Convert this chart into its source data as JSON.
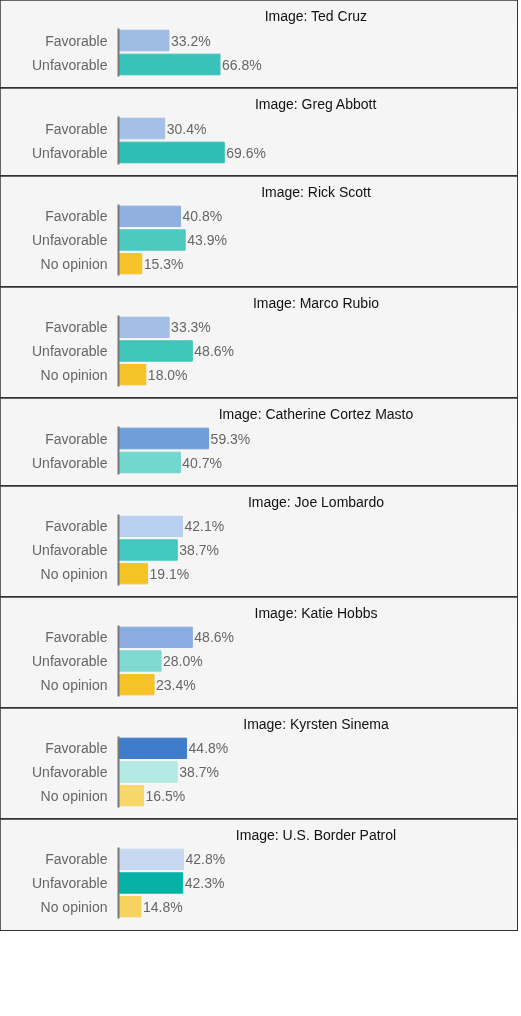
{
  "chart_data": [
    {
      "type": "bar",
      "orientation": "horizontal",
      "title": "Image: Ted Cruz",
      "categories": [
        "Favorable",
        "Unfavorable"
      ],
      "values": [
        33.2,
        66.8
      ],
      "colors": [
        "#9dbbe3",
        "#38c3b8"
      ],
      "value_labels": [
        "33.2%",
        "66.8%"
      ],
      "xlim": [
        0,
        260
      ],
      "tick_labels": "y"
    },
    {
      "type": "bar",
      "orientation": "horizontal",
      "title": "Image: Greg Abbott",
      "categories": [
        "Favorable",
        "Unfavorable"
      ],
      "values": [
        30.4,
        69.6
      ],
      "colors": [
        "#a4c0e6",
        "#2dbfb3"
      ],
      "value_labels": [
        "30.4%",
        "69.6%"
      ],
      "xlim": [
        0,
        260
      ],
      "tick_labels": "y"
    },
    {
      "type": "bar",
      "orientation": "horizontal",
      "title": "Image: Rick Scott",
      "categories": [
        "Favorable",
        "Unfavorable",
        "No opinion"
      ],
      "values": [
        40.8,
        43.9,
        15.3
      ],
      "colors": [
        "#8fb0e0",
        "#4dc9bd",
        "#f5c228"
      ],
      "value_labels": [
        "40.8%",
        "43.9%",
        "15.3%"
      ],
      "xlim": [
        0,
        260
      ],
      "tick_labels": "y"
    },
    {
      "type": "bar",
      "orientation": "horizontal",
      "title": "Image: Marco Rubio",
      "categories": [
        "Favorable",
        "Unfavorable",
        "No opinion"
      ],
      "values": [
        33.3,
        48.6,
        18.0
      ],
      "colors": [
        "#a3bfe6",
        "#3fc6b9",
        "#f5c228"
      ],
      "value_labels": [
        "33.3%",
        "48.6%",
        "18.0%"
      ],
      "xlim": [
        0,
        260
      ],
      "tick_labels": "y"
    },
    {
      "type": "bar",
      "orientation": "horizontal",
      "title": "Image: Catherine Cortez Masto",
      "categories": [
        "Favorable",
        "Unfavorable"
      ],
      "values": [
        59.3,
        40.7
      ],
      "colors": [
        "#6f9edb",
        "#72d7cf"
      ],
      "value_labels": [
        "59.3%",
        "40.7%"
      ],
      "xlim": [
        0,
        260
      ],
      "tick_labels": "y"
    },
    {
      "type": "bar",
      "orientation": "horizontal",
      "title": "Image: Joe Lombardo",
      "categories": [
        "Favorable",
        "Unfavorable",
        "No opinion"
      ],
      "values": [
        42.1,
        38.7,
        19.1
      ],
      "colors": [
        "#b9cfee",
        "#42c8be",
        "#f4c326"
      ],
      "value_labels": [
        "42.1%",
        "38.7%",
        "19.1%"
      ],
      "xlim": [
        0,
        260
      ],
      "tick_labels": "y"
    },
    {
      "type": "bar",
      "orientation": "horizontal",
      "title": "Image: Katie Hobbs",
      "categories": [
        "Favorable",
        "Unfavorable",
        "No opinion"
      ],
      "values": [
        48.6,
        28.0,
        23.4
      ],
      "colors": [
        "#8aace0",
        "#7dd9d1",
        "#f5c228"
      ],
      "value_labels": [
        "48.6%",
        "28.0%",
        "23.4%"
      ],
      "xlim": [
        0,
        260
      ],
      "tick_labels": "y"
    },
    {
      "type": "bar",
      "orientation": "horizontal",
      "title": "Image: Kyrsten Sinema",
      "categories": [
        "Favorable",
        "Unfavorable",
        "No opinion"
      ],
      "values": [
        44.8,
        38.7,
        16.5
      ],
      "colors": [
        "#3f7ccc",
        "#b4e9e4",
        "#f8d76a"
      ],
      "value_labels": [
        "44.8%",
        "38.7%",
        "16.5%"
      ],
      "xlim": [
        0,
        260
      ],
      "tick_labels": "y"
    },
    {
      "type": "bar",
      "orientation": "horizontal",
      "title": "Image: U.S. Border Patrol",
      "categories": [
        "Favorable",
        "Unfavorable",
        "No opinion"
      ],
      "values": [
        42.8,
        42.3,
        14.8
      ],
      "colors": [
        "#c7d7f0",
        "#06b2a6",
        "#f6d35f"
      ],
      "value_labels": [
        "42.8%",
        "42.3%",
        "14.8%"
      ],
      "xlim": [
        0,
        260
      ],
      "tick_labels": "y"
    }
  ]
}
